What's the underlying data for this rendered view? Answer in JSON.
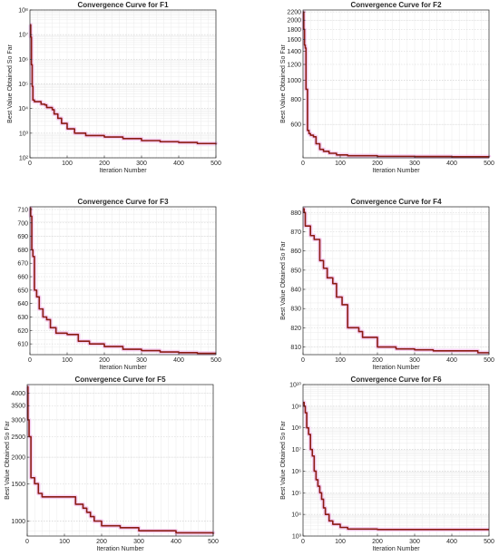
{
  "chart_data": [
    {
      "type": "line",
      "title": "Convergence Curve for F1",
      "xlabel": "Iteration Number",
      "ylabel": "Best Value Obtained So Far",
      "yscale": "log",
      "xlim": [
        0,
        500
      ],
      "ylim": [
        100,
        100000000
      ],
      "xticks": [
        0,
        100,
        200,
        300,
        400,
        500
      ],
      "xtick_labels": [
        "0",
        "100",
        "200",
        "300",
        "400",
        "500"
      ],
      "yticks": [
        100,
        1000,
        10000,
        100000,
        1000000,
        10000000,
        100000000
      ],
      "ytick_labels": [
        "10²",
        "10³",
        "10⁴",
        "10⁵",
        "10⁶",
        "10⁷",
        "10⁸"
      ],
      "grid": true,
      "colors": {
        "line": "#8b1a12",
        "glow": "#f4c6ef"
      },
      "series": [
        {
          "x": [
            0,
            2,
            4,
            6,
            8,
            12,
            25,
            30,
            40,
            45,
            60,
            65,
            75,
            85,
            100,
            120,
            150,
            200,
            250,
            300,
            350,
            400,
            450,
            500
          ],
          "y": [
            25000000,
            8000000,
            600000,
            80000,
            22000,
            19000,
            19000,
            15000,
            14000,
            11000,
            9000,
            6000,
            4000,
            2500,
            1500,
            1000,
            800,
            700,
            600,
            500,
            450,
            420,
            380,
            350
          ]
        }
      ]
    },
    {
      "type": "line",
      "title": "Convergence Curve for F2",
      "xlabel": "Iteration Number",
      "ylabel": "Best Value Obtained So Far",
      "yscale": "log",
      "xlim": [
        0,
        500
      ],
      "ylim": [
        408,
        2250
      ],
      "xticks": [
        0,
        100,
        200,
        300,
        400,
        500
      ],
      "xtick_labels": [
        "0",
        "100",
        "200",
        "300",
        "400",
        "500"
      ],
      "yticks": [
        600,
        800,
        1000,
        1200,
        1400,
        1600,
        1800,
        2000,
        2200
      ],
      "ytick_labels": [
        "600",
        "800",
        "1000",
        "1200",
        "1400",
        "1600",
        "1800",
        "2000",
        "2200"
      ],
      "grid": true,
      "colors": {
        "line": "#8b1a12",
        "glow": "#f4c6ef"
      },
      "series": [
        {
          "x": [
            0,
            2,
            4,
            6,
            8,
            12,
            16,
            20,
            28,
            35,
            45,
            55,
            70,
            90,
            120,
            200,
            300,
            400,
            500
          ],
          "y": [
            2200,
            1800,
            1500,
            1450,
            900,
            560,
            540,
            530,
            520,
            480,
            450,
            440,
            430,
            422,
            418,
            415,
            414,
            413,
            412
          ]
        }
      ]
    },
    {
      "type": "line",
      "title": "Convergence Curve for F3",
      "xlabel": "Iteration Number",
      "ylabel": "",
      "yscale": "linear",
      "xlim": [
        0,
        500
      ],
      "ylim": [
        602,
        712
      ],
      "xticks": [
        0,
        100,
        200,
        300,
        400,
        500
      ],
      "xtick_labels": [
        "0",
        "100",
        "200",
        "300",
        "400",
        "500"
      ],
      "yticks": [
        610,
        620,
        630,
        640,
        650,
        660,
        670,
        680,
        690,
        700,
        710
      ],
      "ytick_labels": [
        "610",
        "620",
        "630",
        "640",
        "650",
        "660",
        "670",
        "680",
        "690",
        "700",
        "710"
      ],
      "grid": true,
      "colors": {
        "line": "#8b1a12",
        "glow": "#f4c6ef"
      },
      "series": [
        {
          "x": [
            0,
            2,
            5,
            8,
            12,
            18,
            25,
            35,
            45,
            55,
            70,
            100,
            130,
            160,
            200,
            250,
            300,
            350,
            400,
            450,
            500
          ],
          "y": [
            711,
            705,
            680,
            675,
            650,
            645,
            636,
            630,
            628,
            622,
            618,
            617,
            612,
            610,
            608,
            606,
            605,
            604,
            603.5,
            603,
            603
          ]
        }
      ]
    },
    {
      "type": "line",
      "title": "Convergence Curve for F4",
      "xlabel": "Iteration Number",
      "ylabel": "Best Value Obtained So Far",
      "yscale": "linear",
      "xlim": [
        0,
        500
      ],
      "ylim": [
        806,
        883
      ],
      "xticks": [
        0,
        100,
        200,
        300,
        400,
        500
      ],
      "xtick_labels": [
        "0",
        "100",
        "200",
        "300",
        "400",
        "500"
      ],
      "yticks": [
        810,
        820,
        830,
        840,
        850,
        860,
        870,
        880
      ],
      "ytick_labels": [
        "810",
        "820",
        "830",
        "840",
        "850",
        "860",
        "870",
        "880"
      ],
      "grid": true,
      "colors": {
        "line": "#8b1a12",
        "glow": "#f4c6ef"
      },
      "series": [
        {
          "x": [
            0,
            3,
            6,
            20,
            30,
            45,
            55,
            65,
            80,
            90,
            105,
            120,
            150,
            160,
            200,
            250,
            300,
            350,
            400,
            470,
            500
          ],
          "y": [
            882,
            880,
            873,
            868,
            866,
            855,
            851,
            846,
            843,
            836,
            832,
            820,
            818,
            815,
            810,
            809,
            808.5,
            808,
            808,
            807,
            807
          ]
        }
      ]
    },
    {
      "type": "line",
      "title": "Convergence Curve for F5",
      "xlabel": "Iteration Number",
      "ylabel": "Best Value Obtained So Far",
      "yscale": "log",
      "xlim": [
        0,
        500
      ],
      "ylim": [
        850,
        4400
      ],
      "xticks": [
        0,
        100,
        200,
        300,
        400,
        500
      ],
      "xtick_labels": [
        "0",
        "100",
        "200",
        "300",
        "400",
        "500"
      ],
      "yticks": [
        1000,
        1500,
        2000,
        2500,
        3000,
        3500,
        4000
      ],
      "ytick_labels": [
        "1000",
        "1500",
        "2000",
        "2500",
        "3000",
        "3500",
        "4000"
      ],
      "grid": true,
      "colors": {
        "line": "#8b1a12",
        "glow": "#f4c6ef"
      },
      "series": [
        {
          "x": [
            0,
            2,
            5,
            10,
            20,
            30,
            40,
            60,
            80,
            100,
            130,
            150,
            160,
            170,
            180,
            200,
            250,
            300,
            400,
            500
          ],
          "y": [
            4300,
            3000,
            2500,
            1600,
            1500,
            1350,
            1300,
            1300,
            1300,
            1300,
            1200,
            1150,
            1100,
            1050,
            1000,
            950,
            930,
            900,
            880,
            870
          ]
        }
      ]
    },
    {
      "type": "line",
      "title": "Convergence Curve for F6",
      "xlabel": "Iteration Number",
      "ylabel": "Best Value Obtained So Far",
      "yscale": "log",
      "xlim": [
        0,
        500
      ],
      "ylim": [
        1000,
        10000000000
      ],
      "xticks": [
        0,
        100,
        200,
        300,
        400,
        500
      ],
      "xtick_labels": [
        "0",
        "100",
        "200",
        "300",
        "400",
        "500"
      ],
      "yticks": [
        1000,
        10000,
        100000,
        1000000,
        10000000,
        100000000,
        1000000000,
        10000000000
      ],
      "ytick_labels": [
        "10³",
        "10⁴",
        "10⁵",
        "10⁶",
        "10⁷",
        "10⁸",
        "10⁹",
        "10¹⁰"
      ],
      "grid": true,
      "colors": {
        "line": "#8b1a12",
        "glow": "#f4c6ef"
      },
      "series": [
        {
          "x": [
            0,
            3,
            6,
            10,
            15,
            20,
            25,
            30,
            35,
            40,
            45,
            50,
            55,
            60,
            70,
            80,
            100,
            120,
            200,
            300,
            400,
            500
          ],
          "y": [
            1500000000,
            1000000000,
            500000000,
            100000000,
            50000000,
            10000000,
            5000000,
            1000000,
            400000,
            200000,
            100000,
            50000,
            20000,
            10000,
            5000,
            3500,
            2500,
            2100,
            2000,
            2000,
            2000,
            2000
          ]
        }
      ]
    }
  ]
}
